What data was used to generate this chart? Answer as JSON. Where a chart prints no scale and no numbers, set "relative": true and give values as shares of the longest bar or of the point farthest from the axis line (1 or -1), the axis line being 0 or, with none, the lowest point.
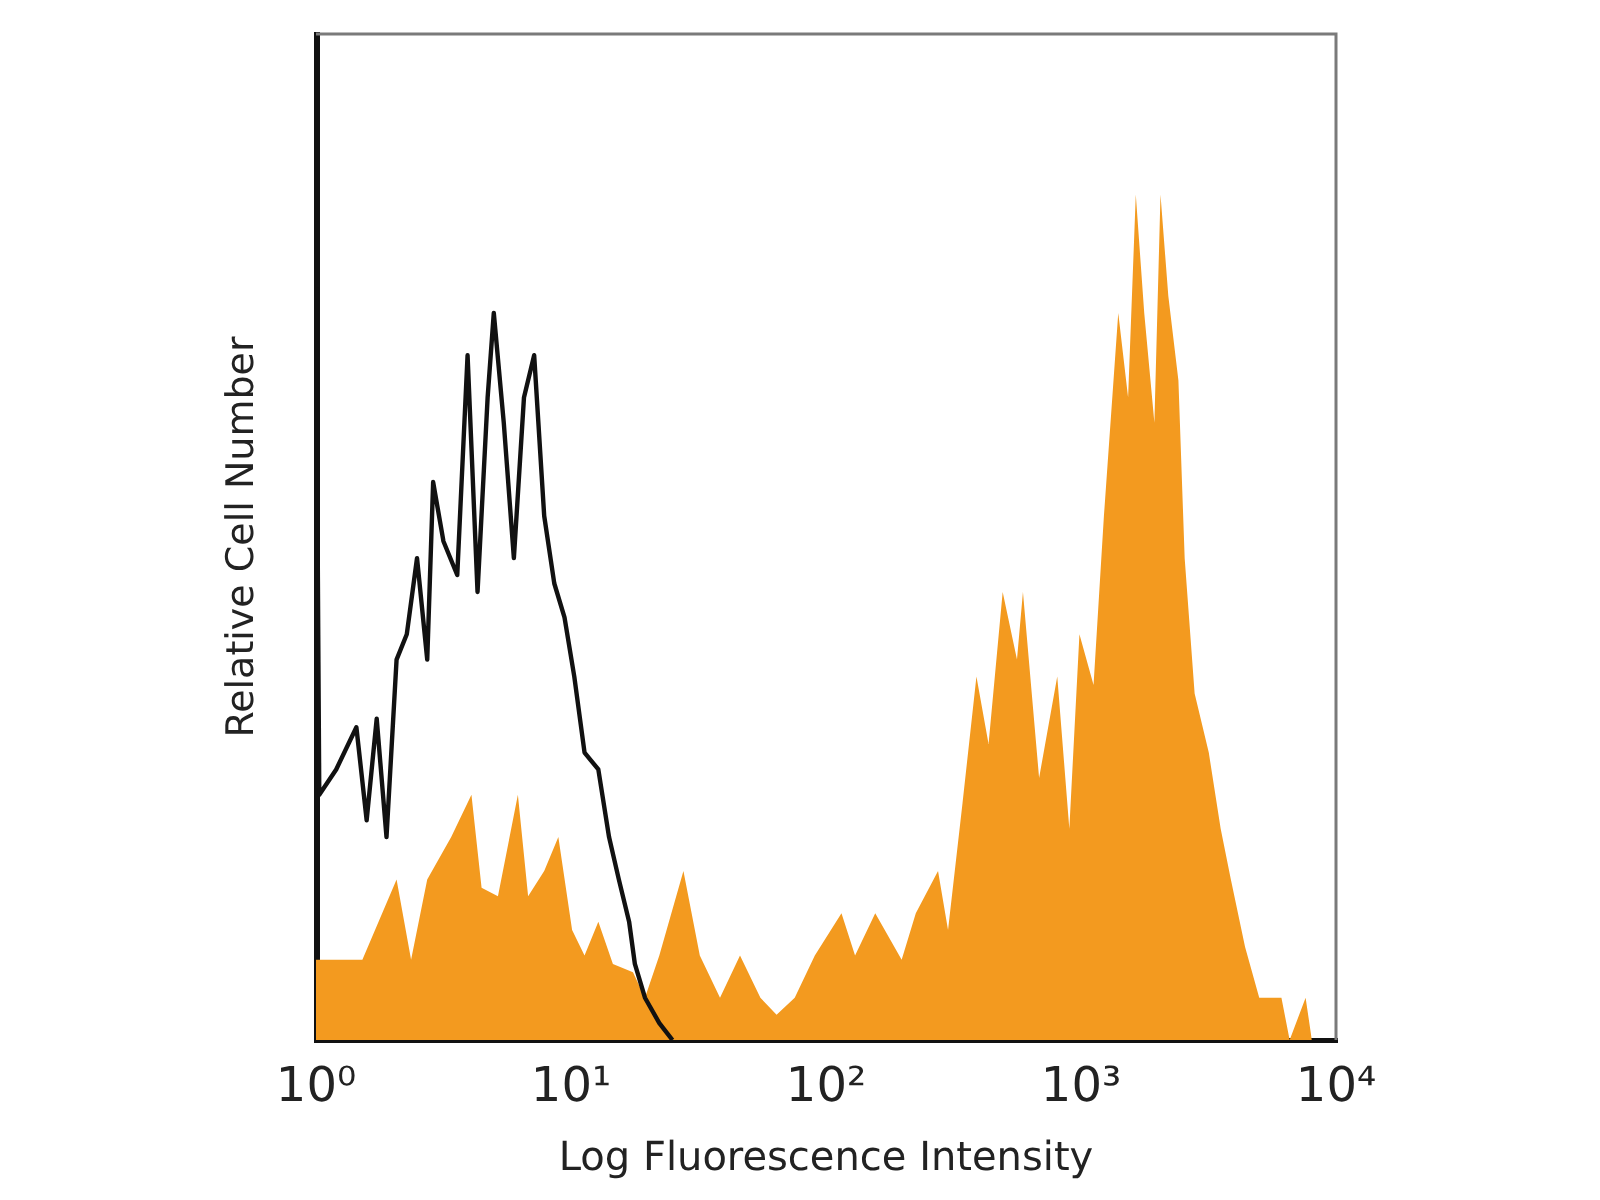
{
  "chart_data": {
    "type": "line",
    "xlabel": "Log Fluorescence Intensity",
    "ylabel": "Relative Cell Number",
    "relative": true,
    "log": "x",
    "marker": "none",
    "grid": false,
    "xlim": [
      1,
      10000
    ],
    "xticks": [
      {
        "value": 1,
        "label": "10⁰"
      },
      {
        "value": 10,
        "label": "10¹"
      },
      {
        "value": 100,
        "label": "10²"
      },
      {
        "value": 1000,
        "label": "10³"
      },
      {
        "value": 10000,
        "label": "10⁴"
      }
    ],
    "series": [
      {
        "type": "line",
        "color": "#111111",
        "x": [
          1,
          1.03,
          1.2,
          1.44,
          1.58,
          1.73,
          1.89,
          2.07,
          2.27,
          2.49,
          2.73,
          2.88,
          3.16,
          3.58,
          3.93,
          4.3,
          4.71,
          4.98,
          5.45,
          5.97,
          6.54,
          7.17,
          7.85,
          8.6,
          9.43,
          10.3,
          11.3,
          12.8,
          14.1,
          15.4,
          16.9,
          17.8,
          19.5,
          22.2,
          25
        ],
        "values": [
          0.89,
          0.29,
          0.32,
          0.37,
          0.26,
          0.38,
          0.24,
          0.45,
          0.48,
          0.57,
          0.45,
          0.66,
          0.59,
          0.55,
          0.81,
          0.53,
          0.76,
          0.86,
          0.73,
          0.57,
          0.76,
          0.81,
          0.62,
          0.54,
          0.5,
          0.43,
          0.34,
          0.32,
          0.24,
          0.19,
          0.14,
          0.09,
          0.05,
          0.02,
          0
        ]
      },
      {
        "type": "area",
        "color": "#f39a1f",
        "x": [
          1,
          1.2,
          1.52,
          2.07,
          2.36,
          2.73,
          3.39,
          4.07,
          4.46,
          5.17,
          6.19,
          6.79,
          7.85,
          8.92,
          10.1,
          11.3,
          12.8,
          14.6,
          17.5,
          19.5,
          22.2,
          27.6,
          32,
          38.4,
          46,
          55.3,
          64,
          75.4,
          90.4,
          115,
          130,
          156,
          198,
          225,
          275,
          301,
          343,
          389,
          434,
          493,
          561,
          592,
          685,
          807,
          900,
          986,
          1120,
          1230,
          1400,
          1530,
          1640,
          1770,
          1940,
          2050,
          2200,
          2410,
          2550,
          2790,
          3170,
          3530,
          3870,
          4400,
          5000,
          6110,
          6580,
          7600,
          8040
        ],
        "values": [
          0.095,
          0.095,
          0.095,
          0.19,
          0.095,
          0.19,
          0.24,
          0.29,
          0.18,
          0.17,
          0.29,
          0.17,
          0.2,
          0.24,
          0.13,
          0.1,
          0.14,
          0.09,
          0.08,
          0.05,
          0.1,
          0.2,
          0.1,
          0.05,
          0.1,
          0.05,
          0.03,
          0.05,
          0.1,
          0.15,
          0.1,
          0.15,
          0.095,
          0.15,
          0.2,
          0.13,
          0.28,
          0.43,
          0.35,
          0.53,
          0.45,
          0.53,
          0.31,
          0.43,
          0.25,
          0.48,
          0.42,
          0.62,
          0.86,
          0.76,
          1.0,
          0.86,
          0.73,
          1.0,
          0.88,
          0.78,
          0.57,
          0.41,
          0.34,
          0.25,
          0.19,
          0.11,
          0.05,
          0.05,
          0,
          0.05,
          0
        ]
      }
    ]
  }
}
